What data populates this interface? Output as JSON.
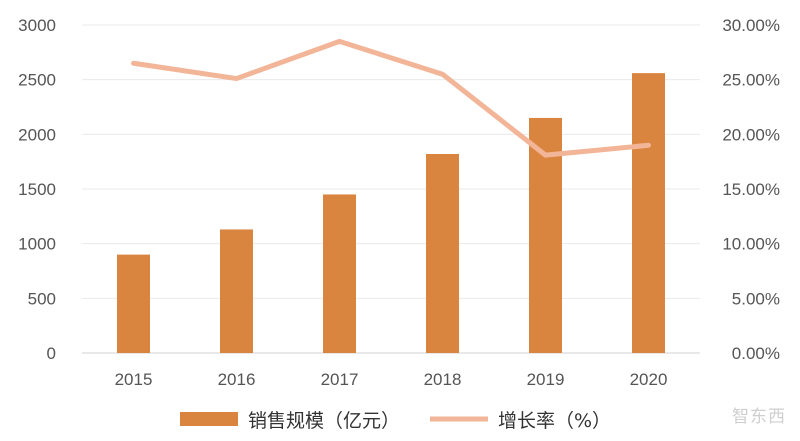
{
  "chart_data": {
    "type": "bar",
    "categories": [
      "2015",
      "2016",
      "2017",
      "2018",
      "2019",
      "2020"
    ],
    "series": [
      {
        "name": "销售规模（亿元）",
        "type": "bar",
        "axis": "left",
        "values": [
          900,
          1130,
          1450,
          1820,
          2150,
          2560
        ],
        "color": "#D9843F"
      },
      {
        "name": "增长率（%）",
        "type": "line",
        "axis": "right",
        "values": [
          26.5,
          25.1,
          28.5,
          25.5,
          18.1,
          19.0
        ],
        "color": "#F2B597"
      }
    ],
    "left_axis": {
      "ylim": [
        0,
        3000
      ],
      "ticks": [
        "0",
        "500",
        "1000",
        "1500",
        "2000",
        "2500",
        "3000"
      ]
    },
    "right_axis": {
      "ylim": [
        0,
        30
      ],
      "ticks": [
        "0.00%",
        "5.00%",
        "10.00%",
        "15.00%",
        "20.00%",
        "25.00%",
        "30.00%"
      ]
    },
    "grid": true,
    "legend": "bottom-center"
  },
  "watermark": "智东西"
}
